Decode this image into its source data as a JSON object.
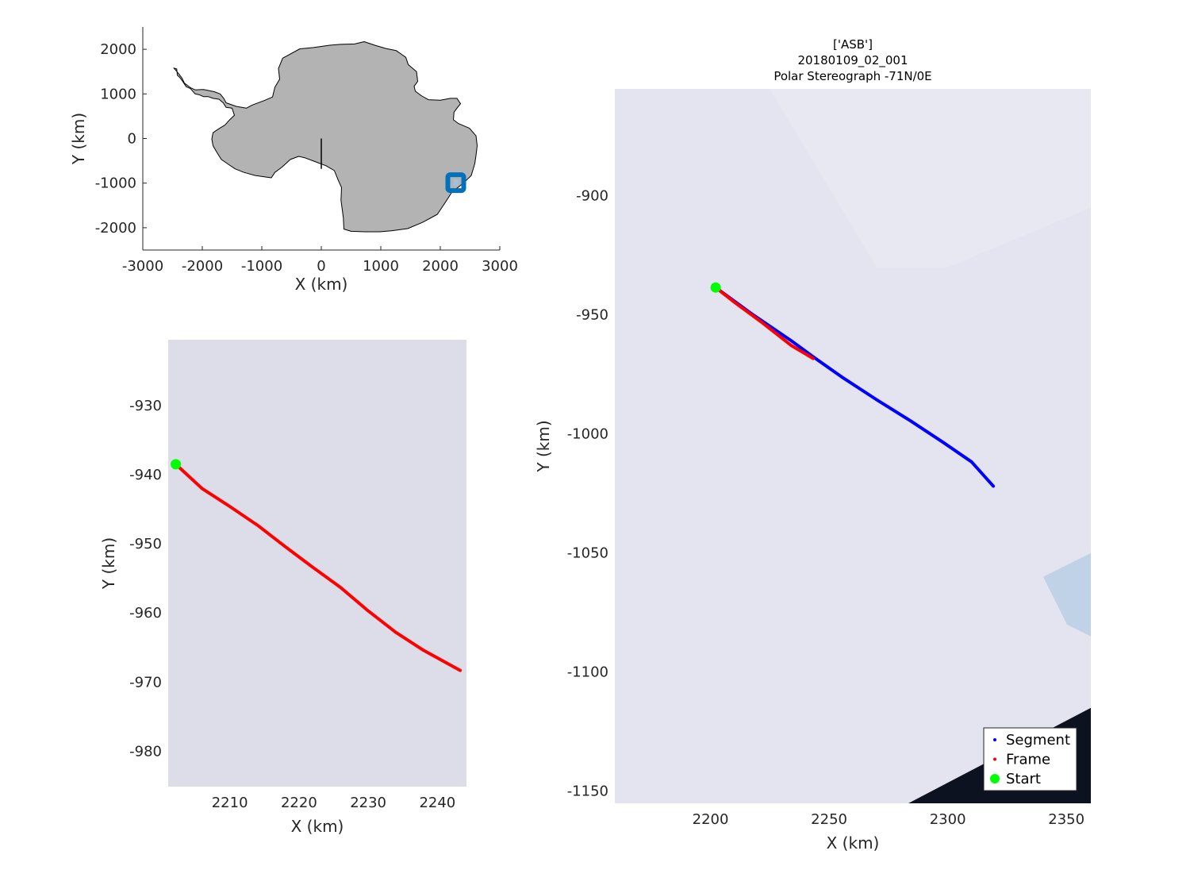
{
  "chart_data": [
    {
      "id": "overview",
      "type": "map",
      "xlabel": "X (km)",
      "ylabel": "Y (km)",
      "xlim": [
        -3000,
        3000
      ],
      "ylim": [
        -2500,
        2500
      ],
      "xticks": [
        -3000,
        -2000,
        -1000,
        0,
        1000,
        2000,
        3000
      ],
      "yticks": [
        -2000,
        -1000,
        0,
        1000,
        2000
      ],
      "xtick_labels": [
        "-3000",
        "-2000",
        "-1000",
        "0",
        "1000",
        "2000",
        "3000"
      ],
      "ytick_labels": [
        "-2000",
        "-1000",
        "0",
        "1000",
        "2000"
      ],
      "land_color": "#b3b3b3",
      "marker_color": "#0072bd",
      "meridian": {
        "x": [
          0,
          0
        ],
        "y": [
          0,
          -680
        ]
      },
      "location_marker": {
        "x": 2260,
        "y": -990
      },
      "coastline": [
        [
          -2480,
          1580
        ],
        [
          -2430,
          1560
        ],
        [
          -2420,
          1420
        ],
        [
          -2380,
          1370
        ],
        [
          -2330,
          1280
        ],
        [
          -2270,
          1160
        ],
        [
          -2200,
          1120
        ],
        [
          -2120,
          1000
        ],
        [
          -2050,
          980
        ],
        [
          -1980,
          940
        ],
        [
          -1900,
          940
        ],
        [
          -1820,
          900
        ],
        [
          -1720,
          880
        ],
        [
          -1650,
          800
        ],
        [
          -1600,
          700
        ],
        [
          -1500,
          680
        ],
        [
          -1460,
          520
        ],
        [
          -1540,
          420
        ],
        [
          -1620,
          300
        ],
        [
          -1720,
          220
        ],
        [
          -1820,
          130
        ],
        [
          -1840,
          -10
        ],
        [
          -1820,
          -160
        ],
        [
          -1760,
          -300
        ],
        [
          -1680,
          -470
        ],
        [
          -1560,
          -580
        ],
        [
          -1450,
          -680
        ],
        [
          -1300,
          -760
        ],
        [
          -1110,
          -830
        ],
        [
          -840,
          -880
        ],
        [
          -780,
          -760
        ],
        [
          -660,
          -640
        ],
        [
          -520,
          -470
        ],
        [
          -380,
          -400
        ],
        [
          -280,
          -430
        ],
        [
          -140,
          -500
        ],
        [
          80,
          -610
        ],
        [
          220,
          -720
        ],
        [
          280,
          -920
        ],
        [
          340,
          -1100
        ],
        [
          330,
          -1380
        ],
        [
          370,
          -1780
        ],
        [
          380,
          -2030
        ],
        [
          500,
          -2080
        ],
        [
          730,
          -2090
        ],
        [
          980,
          -2090
        ],
        [
          1180,
          -2070
        ],
        [
          1450,
          -2020
        ],
        [
          1700,
          -1880
        ],
        [
          1950,
          -1700
        ],
        [
          2030,
          -1540
        ],
        [
          2120,
          -1360
        ],
        [
          2190,
          -1210
        ],
        [
          2360,
          -1030
        ],
        [
          2450,
          -920
        ],
        [
          2520,
          -830
        ],
        [
          2580,
          -560
        ],
        [
          2600,
          -380
        ],
        [
          2620,
          -160
        ],
        [
          2600,
          60
        ],
        [
          2490,
          230
        ],
        [
          2300,
          340
        ],
        [
          2220,
          420
        ],
        [
          2230,
          590
        ],
        [
          2280,
          680
        ],
        [
          2340,
          780
        ],
        [
          2280,
          900
        ],
        [
          2170,
          900
        ],
        [
          2000,
          860
        ],
        [
          1800,
          870
        ],
        [
          1680,
          960
        ],
        [
          1580,
          1060
        ],
        [
          1560,
          1170
        ],
        [
          1620,
          1280
        ],
        [
          1600,
          1500
        ],
        [
          1460,
          1660
        ],
        [
          1420,
          1820
        ],
        [
          1260,
          1970
        ],
        [
          1080,
          2020
        ],
        [
          900,
          2090
        ],
        [
          720,
          2170
        ],
        [
          560,
          2120
        ],
        [
          320,
          2110
        ],
        [
          140,
          2090
        ],
        [
          -130,
          2040
        ],
        [
          -360,
          2010
        ],
        [
          -650,
          1800
        ],
        [
          -720,
          1570
        ],
        [
          -700,
          1330
        ],
        [
          -780,
          1150
        ],
        [
          -820,
          930
        ],
        [
          -960,
          850
        ],
        [
          -1160,
          750
        ],
        [
          -1260,
          680
        ],
        [
          -1430,
          720
        ],
        [
          -1600,
          800
        ],
        [
          -1640,
          900
        ],
        [
          -1700,
          1000
        ],
        [
          -1800,
          1050
        ],
        [
          -1980,
          1100
        ],
        [
          -2120,
          1090
        ],
        [
          -2200,
          1140
        ],
        [
          -2300,
          1240
        ],
        [
          -2340,
          1350
        ],
        [
          -2390,
          1440
        ],
        [
          -2440,
          1520
        ],
        [
          -2480,
          1580
        ]
      ]
    },
    {
      "id": "frame-zoom",
      "type": "line",
      "xlabel": "X (km)",
      "ylabel": "Y (km)",
      "xlim": [
        2201.1,
        2244.2
      ],
      "ylim": [
        -985.1,
        -920.5
      ],
      "xticks": [
        2210,
        2220,
        2230,
        2240
      ],
      "yticks": [
        -930,
        -940,
        -950,
        -960,
        -970,
        -980
      ],
      "xtick_labels": [
        "2210",
        "2220",
        "2230",
        "2240"
      ],
      "ytick_labels": [
        "-930",
        "-940",
        "-950",
        "-960",
        "-970",
        "-980"
      ],
      "background_color": "#dcdde9",
      "series": [
        {
          "name": "Frame",
          "color": "#ff0000",
          "x": [
            2202.2,
            2206.0,
            2210.0,
            2214.0,
            2218.0,
            2222.0,
            2226.0,
            2230.0,
            2234.0,
            2238.0,
            2243.3
          ],
          "y": [
            -938.5,
            -942.0,
            -944.6,
            -947.3,
            -950.4,
            -953.4,
            -956.3,
            -959.7,
            -962.8,
            -965.4,
            -968.3
          ]
        }
      ],
      "start": {
        "x": 2202.2,
        "y": -938.5,
        "color": "#00ff00"
      }
    },
    {
      "id": "segment-map",
      "type": "line",
      "title": [
        "['ASB']",
        "20180109_02_001",
        "Polar Stereograph -71N/0E"
      ],
      "xlabel": "X (km)",
      "ylabel": "Y (km)",
      "xlim": [
        2159.7,
        2360.3
      ],
      "ylim": [
        -1155.1,
        -855.1
      ],
      "xticks": [
        2200,
        2250,
        2300,
        2350
      ],
      "yticks": [
        -900,
        -950,
        -1000,
        -1050,
        -1100,
        -1150
      ],
      "xtick_labels": [
        "2200",
        "2250",
        "2300",
        "2350"
      ],
      "ytick_labels": [
        "-900",
        "-950",
        "-1000",
        "-1050",
        "-1100",
        "-1150"
      ],
      "background_color": "#e3e4ef",
      "legend_position": "bottom-right",
      "series": [
        {
          "name": "Segment",
          "color": "#0000ff",
          "x": [
            2202.2,
            2218.0,
            2234.0,
            2244.0,
            2256.0,
            2270.0,
            2284.0,
            2298.0,
            2310.0,
            2319.2
          ],
          "y": [
            -938.5,
            -950.0,
            -960.8,
            -968.1,
            -976.5,
            -985.6,
            -994.3,
            -1003.5,
            -1011.7,
            -1021.9
          ]
        },
        {
          "name": "Frame",
          "color": "#ff0000",
          "x": [
            2202.2,
            2210.0,
            2222.0,
            2234.0,
            2243.3
          ],
          "y": [
            -938.5,
            -944.6,
            -953.4,
            -962.8,
            -968.3
          ]
        }
      ],
      "start": {
        "name": "Start",
        "x": 2202.2,
        "y": -938.5,
        "color": "#00ff00"
      },
      "legend": [
        "Segment",
        "Frame",
        "Start"
      ]
    }
  ]
}
